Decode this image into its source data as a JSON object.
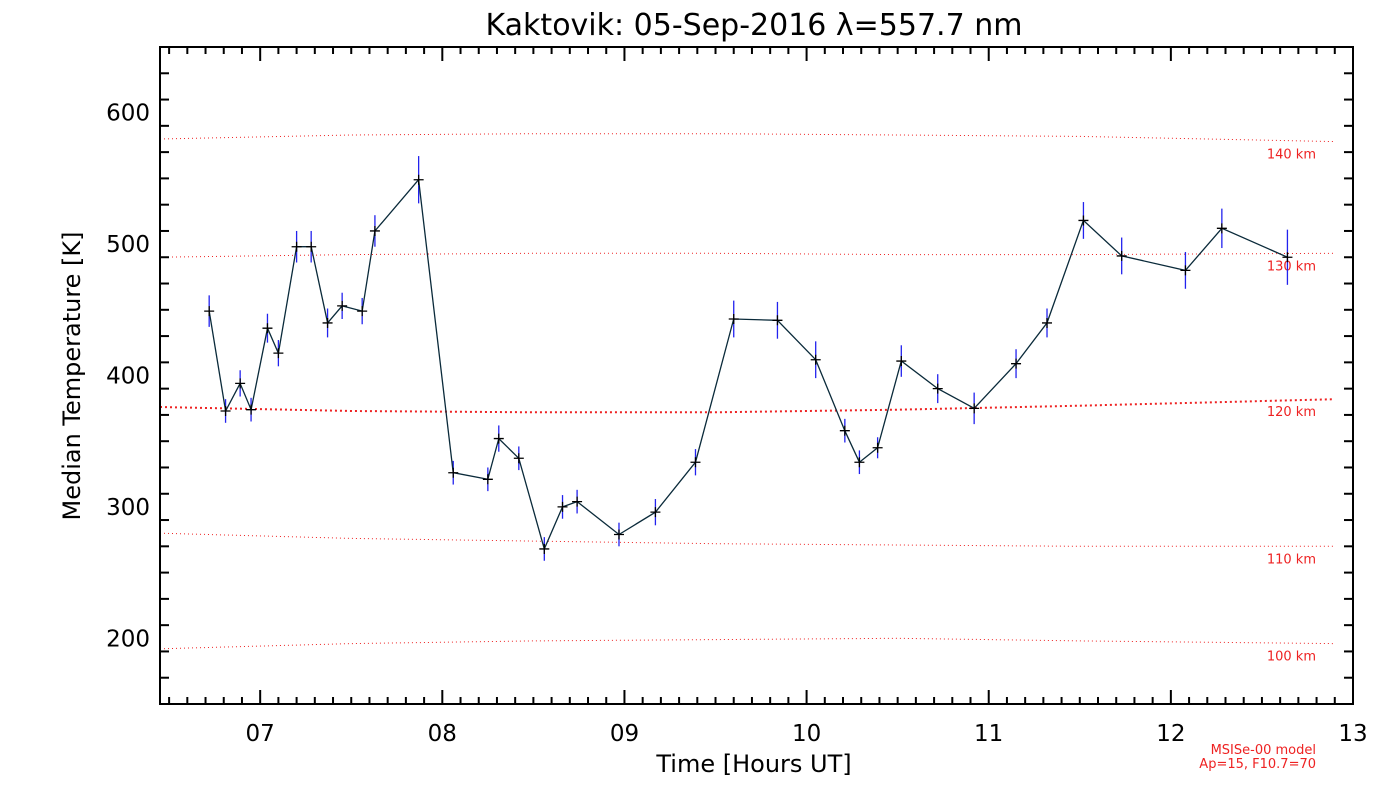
{
  "chart_data": {
    "type": "line",
    "title": "Kaktovik: 05-Sep-2016 λ=557.7 nm",
    "xlabel": "Time [Hours UT]",
    "ylabel": "Median Temperature [K]",
    "xlim": [
      6.45,
      13.0
    ],
    "ylim": [
      150,
      650
    ],
    "xticks": [
      7,
      8,
      9,
      10,
      11,
      12,
      13
    ],
    "xtick_labels": [
      "07",
      "08",
      "09",
      "10",
      "11",
      "12",
      "13"
    ],
    "yticks": [
      200,
      300,
      400,
      500,
      600
    ],
    "ytick_labels": [
      "200",
      "300",
      "400",
      "500",
      "600"
    ],
    "grid": false,
    "series": [
      {
        "color": "#0a2a3a",
        "marker": "+",
        "errorbar_color": "#2222ee",
        "x": [
          6.72,
          6.81,
          6.89,
          6.95,
          7.04,
          7.1,
          7.2,
          7.28,
          7.37,
          7.45,
          7.56,
          7.63,
          7.87,
          8.06,
          8.25,
          8.31,
          8.42,
          8.56,
          8.66,
          8.74,
          8.97,
          9.17,
          9.39,
          9.6,
          9.84,
          10.05,
          10.21,
          10.29,
          10.39,
          10.52,
          10.72,
          10.92,
          11.15,
          11.32,
          11.52,
          11.73,
          12.08,
          12.28,
          12.64
        ],
        "y": [
          449,
          373,
          394,
          374,
          436,
          417,
          498,
          498,
          440,
          453,
          449,
          510,
          549,
          326,
          321,
          352,
          337,
          268,
          300,
          304,
          279,
          296,
          334,
          443,
          442,
          412,
          358,
          334,
          345,
          411,
          390,
          375,
          409,
          440,
          518,
          491,
          480,
          512,
          490
        ],
        "err": [
          12,
          9,
          10,
          9,
          11,
          10,
          12,
          12,
          11,
          10,
          10,
          12,
          18,
          9,
          9,
          10,
          9,
          9,
          9,
          9,
          9,
          10,
          10,
          14,
          14,
          14,
          9,
          9,
          8,
          12,
          11,
          12,
          11,
          11,
          14,
          14,
          14,
          15,
          21
        ]
      }
    ],
    "reference_lines": [
      {
        "label": "140 km",
        "color": "#ee2222",
        "x": [
          6.45,
          7.5,
          8.5,
          9.5,
          10.5,
          11.5,
          12.9
        ],
        "y": [
          580,
          583,
          584,
          584,
          583,
          582,
          578
        ]
      },
      {
        "label": "130 km",
        "color": "#ee2222",
        "x": [
          6.45,
          7.5,
          8.5,
          9.5,
          10.5,
          11.5,
          12.9
        ],
        "y": [
          490,
          492,
          493,
          493,
          492,
          492,
          493
        ]
      },
      {
        "label": "120 km",
        "color": "#ee2222",
        "x": [
          6.45,
          7.5,
          8.5,
          9.5,
          10.5,
          11.5,
          12.9
        ],
        "y": [
          376,
          373,
          372,
          372,
          374,
          377,
          382
        ]
      },
      {
        "label": "110 km",
        "color": "#ee2222",
        "x": [
          6.45,
          7.5,
          8.5,
          9.5,
          10.5,
          11.5,
          12.9
        ],
        "y": [
          280,
          276,
          274,
          272,
          271,
          270,
          270
        ]
      },
      {
        "label": "100 km",
        "color": "#ee2222",
        "x": [
          6.45,
          7.5,
          8.5,
          9.5,
          10.5,
          11.5,
          12.9
        ],
        "y": [
          192,
          196,
          198,
          199,
          200,
          198,
          196
        ]
      }
    ],
    "annotation": {
      "lines": [
        "MSISe-00 model",
        "Ap=15, F10.7=70"
      ],
      "color": "#ee2222"
    }
  }
}
